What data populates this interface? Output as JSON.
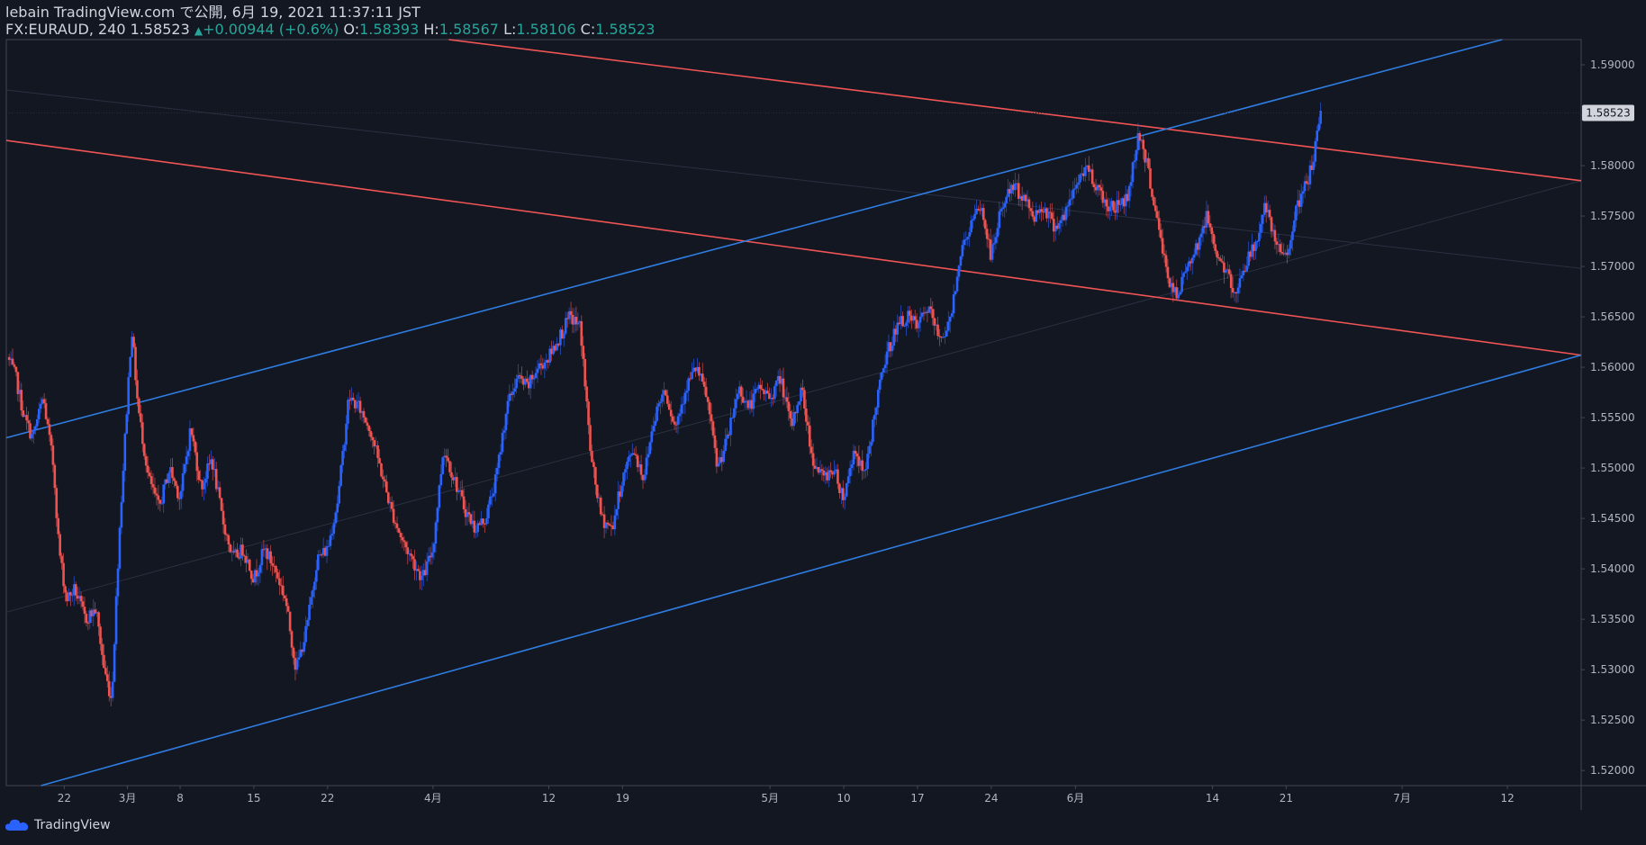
{
  "header": {
    "line1": "lebain TradingView.com で公開, 6月 19, 2021 11:37:11 JST",
    "symbol": "FX:EURAUD, 240",
    "last": "1.58523",
    "change": "+0.00944 (+0.6%)",
    "o_label": "O:",
    "o_value": "1.58393",
    "h_label": "H:",
    "h_value": "1.58567",
    "l_label": "L:",
    "l_value": "1.58106",
    "c_label": "C:",
    "c_value": "1.58523"
  },
  "footer": {
    "brand": "TradingView"
  },
  "colors": {
    "background": "#131722",
    "up": "#2962ff",
    "down": "#ef5350",
    "resistance": "#f05454",
    "support": "#2f7de1",
    "axis_text": "#b2b5be",
    "price_tag_bg": "#d1d4dc",
    "price_tag_text": "#131722"
  },
  "chart_data": {
    "type": "candlestick",
    "symbol": "FX:EURAUD",
    "interval": "240",
    "ylim": [
      1.5185,
      1.5925
    ],
    "y_ticks": [
      "1.59000",
      "1.58500",
      "1.58000",
      "1.57500",
      "1.57000",
      "1.56500",
      "1.56000",
      "1.55500",
      "1.55000",
      "1.54500",
      "1.54000",
      "1.53500",
      "1.53000",
      "1.52500",
      "1.52000"
    ],
    "current_price": "1.58523",
    "x_ticks": [
      {
        "label": "22",
        "t": 3
      },
      {
        "label": "3月",
        "t": 9
      },
      {
        "label": "8",
        "t": 14
      },
      {
        "label": "15",
        "t": 21
      },
      {
        "label": "22",
        "t": 28
      },
      {
        "label": "4月",
        "t": 38
      },
      {
        "label": "12",
        "t": 49
      },
      {
        "label": "19",
        "t": 56
      },
      {
        "label": "5月",
        "t": 70
      },
      {
        "label": "10",
        "t": 77
      },
      {
        "label": "17",
        "t": 84
      },
      {
        "label": "24",
        "t": 91
      },
      {
        "label": "6月",
        "t": 99
      },
      {
        "label": "14",
        "t": 112
      },
      {
        "label": "21",
        "t": 119
      },
      {
        "label": "7月",
        "t": 130
      },
      {
        "label": "12",
        "t": 140
      }
    ],
    "t_range": [
      -2.5,
      147
    ],
    "price_path": [
      [
        -2.4,
        1.561
      ],
      [
        -1.6,
        1.559
      ],
      [
        -0.8,
        1.555
      ],
      [
        0,
        1.553
      ],
      [
        1,
        1.557
      ],
      [
        2,
        1.55
      ],
      [
        2.5,
        1.542
      ],
      [
        3.2,
        1.537
      ],
      [
        4,
        1.538
      ],
      [
        5,
        1.535
      ],
      [
        6,
        1.536
      ],
      [
        6.8,
        1.53
      ],
      [
        7.5,
        1.527
      ],
      [
        8.2,
        1.543
      ],
      [
        9,
        1.557
      ],
      [
        9.4,
        1.564
      ],
      [
        10,
        1.556
      ],
      [
        11,
        1.549
      ],
      [
        12,
        1.546
      ],
      [
        13,
        1.55
      ],
      [
        14,
        1.547
      ],
      [
        15,
        1.554
      ],
      [
        16,
        1.548
      ],
      [
        17,
        1.551
      ],
      [
        18,
        1.545
      ],
      [
        19,
        1.541
      ],
      [
        20,
        1.542
      ],
      [
        21,
        1.539
      ],
      [
        22,
        1.542
      ],
      [
        23,
        1.54
      ],
      [
        24,
        1.537
      ],
      [
        25,
        1.53
      ],
      [
        26,
        1.534
      ],
      [
        27,
        1.541
      ],
      [
        28,
        1.542
      ],
      [
        29,
        1.547
      ],
      [
        30,
        1.557
      ],
      [
        31,
        1.556
      ],
      [
        32,
        1.554
      ],
      [
        33,
        1.55
      ],
      [
        34,
        1.546
      ],
      [
        35,
        1.543
      ],
      [
        36,
        1.541
      ],
      [
        37,
        1.539
      ],
      [
        38,
        1.542
      ],
      [
        39,
        1.552
      ],
      [
        40,
        1.549
      ],
      [
        41,
        1.546
      ],
      [
        42,
        1.544
      ],
      [
        43,
        1.545
      ],
      [
        44,
        1.549
      ],
      [
        45,
        1.556
      ],
      [
        46,
        1.559
      ],
      [
        47,
        1.558
      ],
      [
        48,
        1.56
      ],
      [
        49,
        1.561
      ],
      [
        50,
        1.563
      ],
      [
        51,
        1.565
      ],
      [
        52,
        1.564
      ],
      [
        53,
        1.551
      ],
      [
        54,
        1.545
      ],
      [
        55,
        1.544
      ],
      [
        56,
        1.549
      ],
      [
        57,
        1.552
      ],
      [
        58,
        1.549
      ],
      [
        59,
        1.555
      ],
      [
        60,
        1.558
      ],
      [
        61,
        1.554
      ],
      [
        62,
        1.558
      ],
      [
        63,
        1.56
      ],
      [
        64,
        1.557
      ],
      [
        65,
        1.55
      ],
      [
        66,
        1.553
      ],
      [
        67,
        1.558
      ],
      [
        68,
        1.556
      ],
      [
        69,
        1.558
      ],
      [
        70,
        1.557
      ],
      [
        71,
        1.559
      ],
      [
        72,
        1.554
      ],
      [
        73,
        1.558
      ],
      [
        74,
        1.551
      ],
      [
        75,
        1.549
      ],
      [
        76,
        1.55
      ],
      [
        77,
        1.547
      ],
      [
        78,
        1.552
      ],
      [
        79,
        1.549
      ],
      [
        80,
        1.556
      ],
      [
        81,
        1.561
      ],
      [
        82,
        1.564
      ],
      [
        83,
        1.565
      ],
      [
        84,
        1.564
      ],
      [
        85,
        1.566
      ],
      [
        86,
        1.563
      ],
      [
        87,
        1.564
      ],
      [
        88,
        1.571
      ],
      [
        89,
        1.574
      ],
      [
        90,
        1.576
      ],
      [
        91,
        1.571
      ],
      [
        92,
        1.576
      ],
      [
        93,
        1.578
      ],
      [
        94,
        1.577
      ],
      [
        95,
        1.575
      ],
      [
        96,
        1.576
      ],
      [
        97,
        1.574
      ],
      [
        98,
        1.575
      ],
      [
        99,
        1.578
      ],
      [
        100,
        1.58
      ],
      [
        101,
        1.578
      ],
      [
        102,
        1.576
      ],
      [
        103,
        1.576
      ],
      [
        104,
        1.577
      ],
      [
        105,
        1.5835
      ],
      [
        106,
        1.579
      ],
      [
        107,
        1.573
      ],
      [
        108,
        1.568
      ],
      [
        108.7,
        1.5668
      ],
      [
        109.5,
        1.57
      ],
      [
        110.5,
        1.572
      ],
      [
        111.5,
        1.575
      ],
      [
        112.5,
        1.571
      ],
      [
        113.5,
        1.569
      ],
      [
        114,
        1.567
      ],
      [
        115,
        1.57
      ],
      [
        116,
        1.572
      ],
      [
        117,
        1.576
      ],
      [
        118,
        1.572
      ],
      [
        119,
        1.571
      ],
      [
        119.8,
        1.575
      ],
      [
        120.5,
        1.577
      ],
      [
        121.2,
        1.579
      ],
      [
        121.8,
        1.582
      ],
      [
        122.3,
        1.5852
      ]
    ],
    "trendlines": [
      {
        "name": "resistance-upper",
        "color": "resistance",
        "points": [
          [
            39.5,
            1.5925
          ],
          [
            147,
            1.5785
          ]
        ]
      },
      {
        "name": "resistance-lower",
        "color": "resistance",
        "points": [
          [
            -2.5,
            1.5825
          ],
          [
            147,
            1.5612
          ]
        ]
      },
      {
        "name": "support-upper",
        "color": "support",
        "points": [
          [
            -2.5,
            1.553
          ],
          [
            139.5,
            1.5925
          ]
        ]
      },
      {
        "name": "support-lower",
        "color": "support",
        "points": [
          [
            0.8,
            1.5185
          ],
          [
            147,
            1.5612
          ]
        ]
      }
    ],
    "midlines": [
      {
        "name": "resistance-mid",
        "points": [
          [
            -2.5,
            1.5875
          ],
          [
            147,
            1.5698
          ]
        ]
      },
      {
        "name": "support-mid",
        "points": [
          [
            -2.5,
            1.5357
          ],
          [
            147,
            1.5785
          ]
        ]
      }
    ]
  }
}
